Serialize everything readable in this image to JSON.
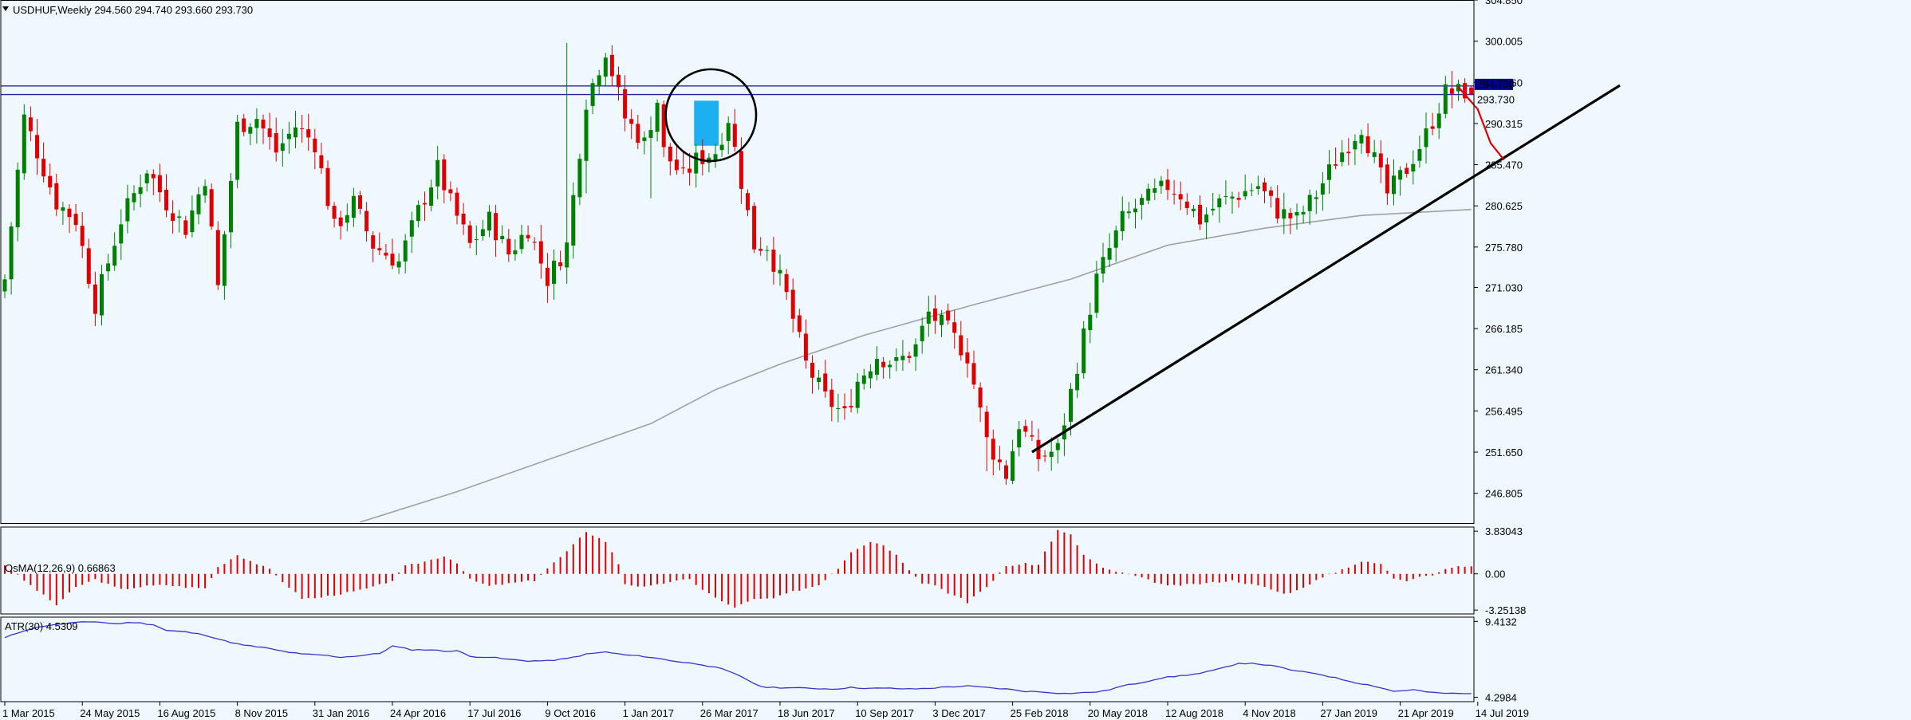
{
  "colors": {
    "background": "#f0f8ff",
    "frame": "#000000",
    "up": "#008000",
    "down": "#e00000",
    "ma": "#a0a0a0",
    "hline": "#2222aa",
    "trend": "#000000",
    "atr": "#3333cc",
    "highlight": "#1cb0f0",
    "price_tag_bg": "#00008b",
    "price_tag_text": "#ffffff"
  },
  "chart_data": [
    {
      "type": "candlestick",
      "title": "USDHUF,Weekly  294.560 294.740 293.660 293.730",
      "ylim": [
        243.3,
        304.85
      ],
      "y_ticks": [
        "304.850",
        "300.005",
        "295.160",
        "290.315",
        "285.470",
        "280.625",
        "275.780",
        "271.030",
        "266.185",
        "261.340",
        "256.495",
        "251.650",
        "246.805"
      ],
      "x_ticks": [
        "1 Mar 2015",
        "24 May 2015",
        "16 Aug 2015",
        "8 Nov 2015",
        "31 Jan 2016",
        "24 Apr 2016",
        "17 Jul 2016",
        "9 Oct 2016",
        "1 Jan 2017",
        "26 Mar 2017",
        "18 Jun 2017",
        "10 Sep 2017",
        "3 Dec 2017",
        "25 Feb 2018",
        "20 May 2018",
        "12 Aug 2018",
        "4 Nov 2018",
        "27 Jan 2019",
        "21 Apr 2019",
        "14 Jul 2019"
      ],
      "price_labels": [
        "294.730",
        "293.730"
      ],
      "horizontal_lines": [
        294.73,
        293.73
      ],
      "close_anchors": [
        [
          0,
          272
        ],
        [
          3,
          291
        ],
        [
          8,
          281
        ],
        [
          11,
          279
        ],
        [
          14,
          269
        ],
        [
          18,
          279
        ],
        [
          22,
          285
        ],
        [
          25,
          281
        ],
        [
          28,
          278
        ],
        [
          31,
          284
        ],
        [
          33,
          271
        ],
        [
          36,
          290
        ],
        [
          39,
          291
        ],
        [
          42,
          287
        ],
        [
          45,
          290
        ],
        [
          48,
          288
        ],
        [
          51,
          278
        ],
        [
          54,
          281
        ],
        [
          57,
          276
        ],
        [
          61,
          274
        ],
        [
          64,
          280
        ],
        [
          67,
          285
        ],
        [
          69,
          281
        ],
        [
          72,
          276
        ],
        [
          75,
          279
        ],
        [
          78,
          275
        ],
        [
          81,
          278
        ],
        [
          84,
          272
        ],
        [
          87,
          276
        ],
        [
          90,
          293
        ],
        [
          93,
          299
        ],
        [
          96,
          291
        ],
        [
          99,
          288
        ],
        [
          101,
          293
        ],
        [
          102,
          287
        ],
        [
          105,
          284
        ],
        [
          107,
          286
        ],
        [
          110,
          287
        ],
        [
          112,
          291
        ],
        [
          116,
          276
        ],
        [
          118,
          276
        ],
        [
          121,
          270
        ],
        [
          124,
          262
        ],
        [
          127,
          258
        ],
        [
          130,
          256
        ],
        [
          132,
          260
        ],
        [
          135,
          263
        ],
        [
          138,
          262
        ],
        [
          141,
          264
        ],
        [
          143,
          268
        ],
        [
          146,
          266
        ],
        [
          149,
          263
        ],
        [
          152,
          253
        ],
        [
          155,
          249
        ],
        [
          157,
          255
        ],
        [
          160,
          251
        ],
        [
          163,
          252
        ],
        [
          166,
          262
        ],
        [
          169,
          272
        ],
        [
          173,
          279
        ],
        [
          176,
          281
        ],
        [
          180,
          283
        ],
        [
          182,
          282
        ],
        [
          185,
          279
        ],
        [
          188,
          281
        ],
        [
          191,
          282
        ],
        [
          194,
          283
        ],
        [
          197,
          280
        ],
        [
          200,
          279
        ],
        [
          203,
          282
        ],
        [
          206,
          286
        ],
        [
          210,
          290
        ],
        [
          212,
          286
        ],
        [
          214,
          282
        ],
        [
          217,
          285
        ],
        [
          220,
          289
        ],
        [
          223,
          294
        ],
        [
          225,
          294
        ],
        [
          226,
          294.1
        ],
        [
          227,
          293.73
        ]
      ],
      "events": [
        [
          87,
          299.8
        ],
        [
          90,
          282.1
        ],
        [
          96,
          289.4
        ],
        [
          100,
          281.5
        ],
        [
          152,
          249.4
        ],
        [
          155,
          248
        ],
        [
          223,
          293.7
        ],
        [
          224,
          296.5
        ]
      ],
      "ma": [
        [
          55,
          243.4
        ],
        [
          70,
          247
        ],
        [
          85,
          251
        ],
        [
          100,
          255
        ],
        [
          110,
          259
        ],
        [
          120,
          262
        ],
        [
          133,
          265.4
        ],
        [
          150,
          269
        ],
        [
          165,
          272
        ],
        [
          180,
          276
        ],
        [
          195,
          278
        ],
        [
          210,
          279.5
        ],
        [
          227,
          280.2
        ]
      ],
      "trendline": {
        "x": [
          159,
          250
        ],
        "y": [
          251.65,
          294.8
        ]
      },
      "freehand_projection": [
        [
          225,
          294.6
        ],
        [
          228,
          292
        ],
        [
          230,
          288
        ],
        [
          232,
          286.1
        ]
      ],
      "highlight": {
        "x": [
          106.7,
          110.5
        ],
        "y": [
          287.7,
          293
        ]
      },
      "circle": {
        "cx": 109.3,
        "cy": 291.3,
        "rx": 7,
        "ry": 5.4
      }
    },
    {
      "type": "bar",
      "title": "OsMA(12,26,9) 0.66863",
      "ylim": [
        -3.6,
        4.2
      ],
      "y_ticks": [
        "3.83043",
        "0.00",
        "-3.25138"
      ],
      "anchors": [
        [
          0,
          0.8
        ],
        [
          3,
          -0.6
        ],
        [
          8,
          -2.8
        ],
        [
          11,
          -1.2
        ],
        [
          14,
          -0.5
        ],
        [
          18,
          -1.4
        ],
        [
          22,
          -1.1
        ],
        [
          25,
          -1.0
        ],
        [
          28,
          -1.2
        ],
        [
          31,
          -1.3
        ],
        [
          33,
          0.6
        ],
        [
          36,
          1.7
        ],
        [
          39,
          0.9
        ],
        [
          41,
          0.4
        ],
        [
          43,
          -0.7
        ],
        [
          46,
          -2.2
        ],
        [
          48,
          -2.2
        ],
        [
          51,
          -1.9
        ],
        [
          54,
          -1.6
        ],
        [
          57,
          -1.2
        ],
        [
          60,
          -0.6
        ],
        [
          62,
          0.7
        ],
        [
          65,
          1.1
        ],
        [
          68,
          1.6
        ],
        [
          70,
          1.0
        ],
        [
          72,
          -0.5
        ],
        [
          75,
          -1.1
        ],
        [
          79,
          -0.8
        ],
        [
          82,
          -0.6
        ],
        [
          84,
          0.5
        ],
        [
          87,
          2.0
        ],
        [
          90,
          3.8
        ],
        [
          93,
          2.9
        ],
        [
          95,
          0.9
        ],
        [
          96,
          -0.9
        ],
        [
          99,
          -1.2
        ],
        [
          101,
          -1.0
        ],
        [
          103,
          -0.7
        ],
        [
          106,
          -0.5
        ],
        [
          108,
          -1.4
        ],
        [
          111,
          -2.5
        ],
        [
          113,
          -3.0
        ],
        [
          116,
          -2.3
        ],
        [
          119,
          -2.2
        ],
        [
          122,
          -1.6
        ],
        [
          126,
          -1.0
        ],
        [
          129,
          0.5
        ],
        [
          131,
          2.0
        ],
        [
          134,
          2.9
        ],
        [
          136,
          2.6
        ],
        [
          138,
          1.7
        ],
        [
          140,
          0.4
        ],
        [
          142,
          -0.8
        ],
        [
          144,
          -1.0
        ],
        [
          146,
          -1.7
        ],
        [
          148,
          -2.2
        ],
        [
          149,
          -2.7
        ],
        [
          150,
          -2.0
        ],
        [
          152,
          -1.2
        ],
        [
          155,
          0.7
        ],
        [
          158,
          0.9
        ],
        [
          160,
          0.8
        ],
        [
          161,
          2.0
        ],
        [
          163,
          3.9
        ],
        [
          165,
          3.5
        ],
        [
          167,
          1.7
        ],
        [
          170,
          0.5
        ],
        [
          175,
          -0.2
        ],
        [
          180,
          -1.1
        ],
        [
          185,
          -0.9
        ],
        [
          190,
          -0.6
        ],
        [
          195,
          -1.2
        ],
        [
          198,
          -1.8
        ],
        [
          200,
          -1.5
        ],
        [
          203,
          -0.6
        ],
        [
          207,
          0.4
        ],
        [
          210,
          1.1
        ],
        [
          213,
          0.9
        ],
        [
          215,
          -0.4
        ],
        [
          217,
          -0.6
        ],
        [
          219,
          -0.2
        ],
        [
          221,
          -0.1
        ],
        [
          224,
          0.6
        ],
        [
          227,
          0.7
        ]
      ],
      "bar_count": 228
    },
    {
      "type": "line",
      "title": "ATR(30) 4.5309",
      "ylim": [
        4.0,
        9.7
      ],
      "y_ticks": [
        "9.4132",
        "4.2984"
      ],
      "points": [
        [
          0,
          8.3
        ],
        [
          3,
          8.8
        ],
        [
          6,
          9.1
        ],
        [
          10,
          9.3
        ],
        [
          14,
          9.4
        ],
        [
          17,
          9.25
        ],
        [
          20,
          9.35
        ],
        [
          23,
          9.2
        ],
        [
          25,
          8.8
        ],
        [
          28,
          8.7
        ],
        [
          31,
          8.5
        ],
        [
          34,
          8.1
        ],
        [
          37,
          7.8
        ],
        [
          40,
          7.65
        ],
        [
          43,
          7.4
        ],
        [
          46,
          7.2
        ],
        [
          49,
          7.15
        ],
        [
          52,
          7.0
        ],
        [
          55,
          7.1
        ],
        [
          58,
          7.25
        ],
        [
          60,
          7.75
        ],
        [
          63,
          7.5
        ],
        [
          66,
          7.5
        ],
        [
          68,
          7.4
        ],
        [
          70,
          7.45
        ],
        [
          72,
          7.05
        ],
        [
          75,
          7.0
        ],
        [
          78,
          6.85
        ],
        [
          81,
          6.75
        ],
        [
          84,
          6.75
        ],
        [
          87,
          6.9
        ],
        [
          90,
          7.2
        ],
        [
          93,
          7.35
        ],
        [
          96,
          7.15
        ],
        [
          99,
          7.05
        ],
        [
          102,
          6.85
        ],
        [
          105,
          6.65
        ],
        [
          108,
          6.5
        ],
        [
          111,
          6.2
        ],
        [
          114,
          5.7
        ],
        [
          117,
          5.0
        ],
        [
          120,
          4.95
        ],
        [
          125,
          4.9
        ],
        [
          128,
          4.85
        ],
        [
          131,
          4.95
        ],
        [
          134,
          4.9
        ],
        [
          137,
          4.9
        ],
        [
          140,
          4.85
        ],
        [
          143,
          4.9
        ],
        [
          146,
          5.0
        ],
        [
          149,
          5.05
        ],
        [
          152,
          4.95
        ],
        [
          155,
          4.85
        ],
        [
          158,
          4.7
        ],
        [
          161,
          4.65
        ],
        [
          164,
          4.55
        ],
        [
          167,
          4.6
        ],
        [
          170,
          4.7
        ],
        [
          173,
          5.05
        ],
        [
          176,
          5.3
        ],
        [
          179,
          5.6
        ],
        [
          182,
          5.75
        ],
        [
          185,
          5.9
        ],
        [
          188,
          6.2
        ],
        [
          191,
          6.6
        ],
        [
          194,
          6.55
        ],
        [
          197,
          6.35
        ],
        [
          200,
          6.05
        ],
        [
          203,
          5.9
        ],
        [
          206,
          5.6
        ],
        [
          209,
          5.3
        ],
        [
          212,
          5.05
        ],
        [
          215,
          4.7
        ],
        [
          218,
          4.8
        ],
        [
          221,
          4.6
        ],
        [
          224,
          4.55
        ],
        [
          227,
          4.53
        ]
      ]
    }
  ]
}
